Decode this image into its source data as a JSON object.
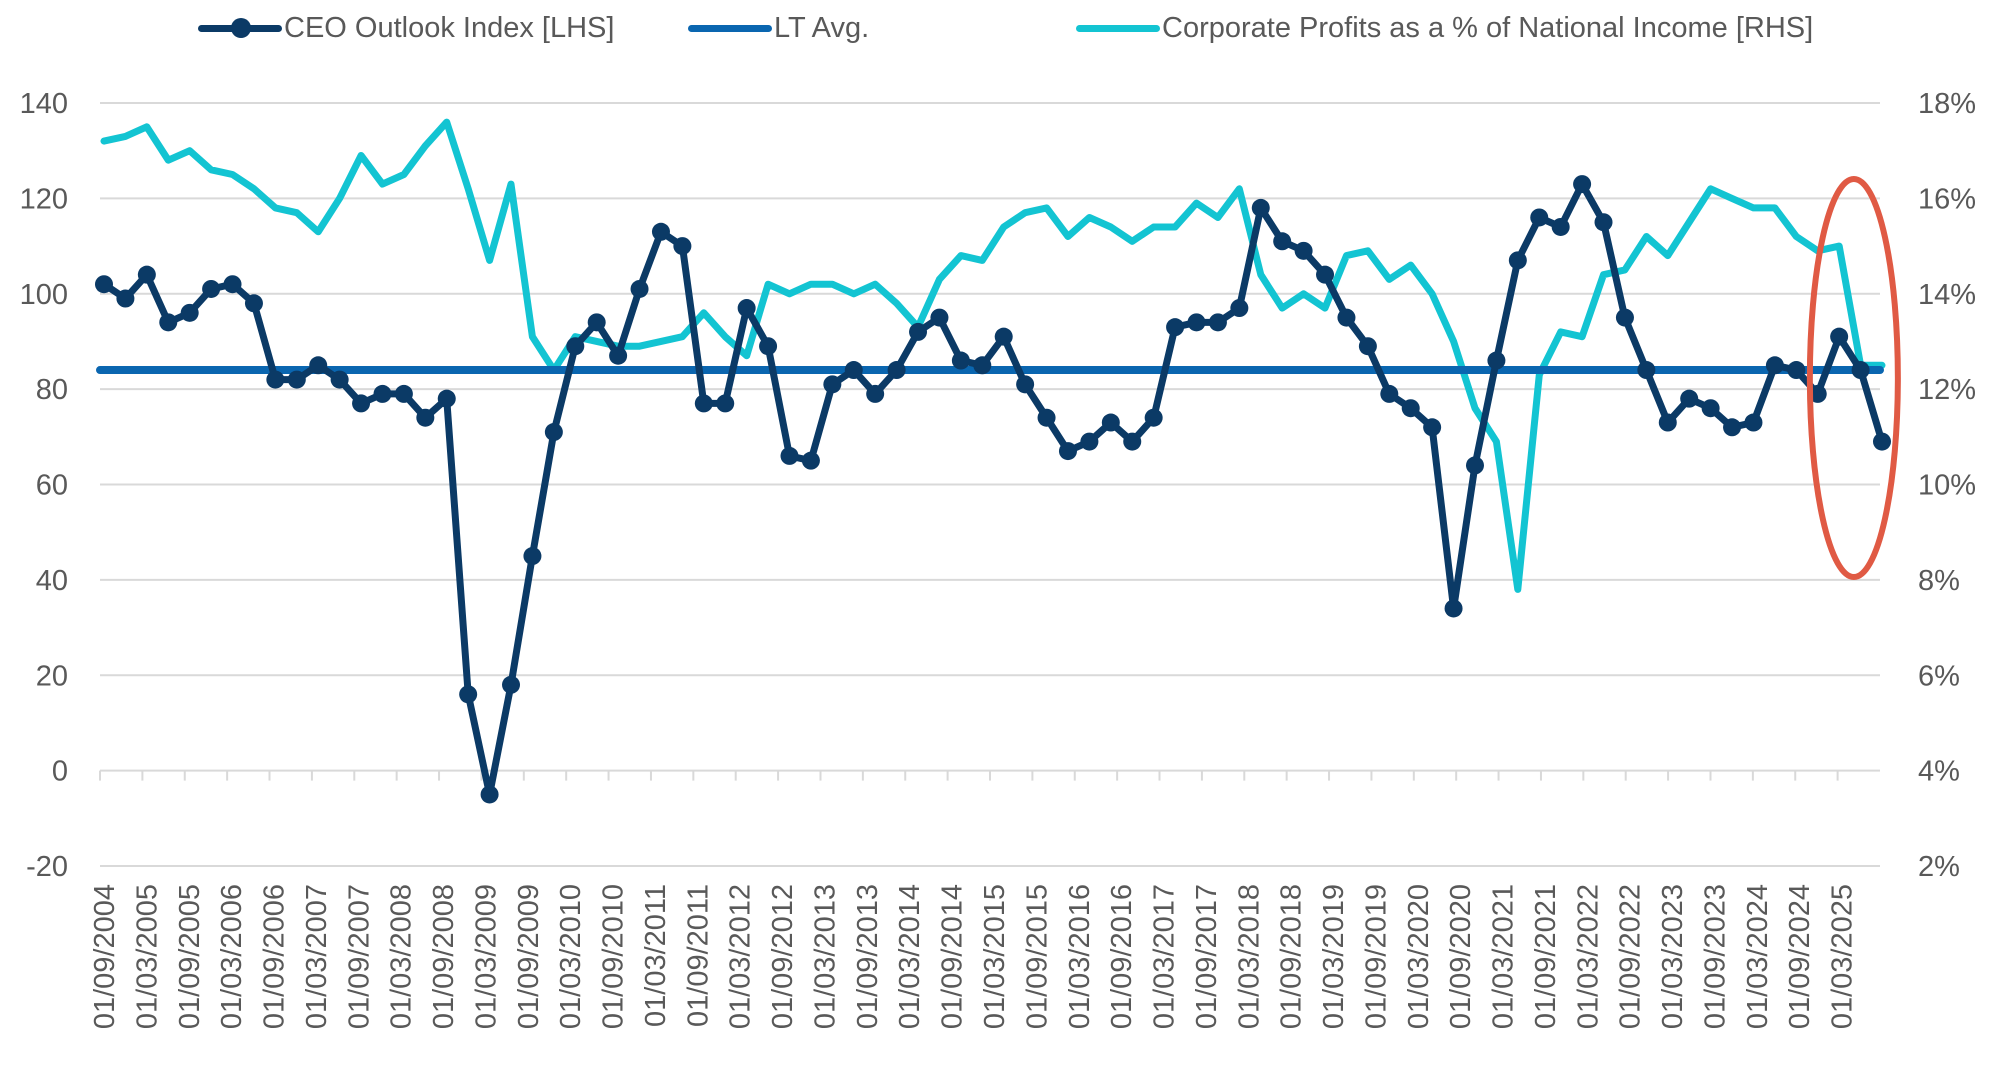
{
  "chart_data": {
    "type": "line",
    "title": "",
    "legend": {
      "placement": "top",
      "entries": [
        {
          "name": "CEO Outlook Index [LHS]",
          "color": "#0b3a66",
          "marker": "circle"
        },
        {
          "name": "LT Avg.",
          "color": "#0a66b0",
          "marker": "none"
        },
        {
          "name": "Corporate Profits as a % of National Income [RHS]",
          "color": "#13c4d2",
          "marker": "none"
        }
      ]
    },
    "x_tick_labels": [
      "01/09/2004",
      "01/03/2005",
      "01/09/2005",
      "01/03/2006",
      "01/09/2006",
      "01/03/2007",
      "01/09/2007",
      "01/03/2008",
      "01/09/2008",
      "01/03/2009",
      "01/09/2009",
      "01/03/2010",
      "01/09/2010",
      "01/03/2011",
      "01/09/2011",
      "01/03/2012",
      "01/09/2012",
      "01/03/2013",
      "01/09/2013",
      "01/03/2014",
      "01/09/2014",
      "01/03/2015",
      "01/09/2015",
      "01/03/2016",
      "01/09/2016",
      "01/03/2017",
      "01/09/2017",
      "01/03/2018",
      "01/09/2018",
      "01/03/2019",
      "01/09/2019",
      "01/03/2020",
      "01/09/2020",
      "01/03/2021",
      "01/09/2021",
      "01/03/2022",
      "01/09/2022",
      "01/03/2023",
      "01/09/2023",
      "01/03/2024",
      "01/09/2024",
      "01/03/2025"
    ],
    "left_axis": {
      "label": "",
      "ylim": [
        -20,
        140
      ],
      "ticks": [
        "-20",
        "0",
        "20",
        "40",
        "60",
        "80",
        "100",
        "120",
        "140"
      ]
    },
    "right_axis": {
      "label": "",
      "ylim": [
        2,
        18
      ],
      "ticks": [
        "2%",
        "4%",
        "6%",
        "8%",
        "10%",
        "12%",
        "14%",
        "16%",
        "18%"
      ]
    },
    "grid": true,
    "series": [
      {
        "name": "CEO Outlook Index [LHS]",
        "axis": "left",
        "values": [
          102,
          99,
          104,
          94,
          96,
          101,
          102,
          98,
          82,
          82,
          85,
          82,
          77,
          79,
          79,
          74,
          78,
          16,
          -5,
          18,
          45,
          71,
          89,
          94,
          87,
          101,
          113,
          110,
          77,
          77,
          97,
          89,
          66,
          65,
          81,
          84,
          79,
          84,
          92,
          95,
          86,
          85,
          91,
          81,
          74,
          67,
          69,
          73,
          69,
          74,
          93,
          94,
          94,
          97,
          118,
          111,
          109,
          104,
          95,
          89,
          79,
          76,
          72,
          34,
          64,
          86,
          107,
          116,
          114,
          123,
          115,
          95,
          84,
          73,
          78,
          76,
          72,
          73,
          85,
          84,
          79,
          91,
          84,
          69
        ]
      },
      {
        "name": "LT Avg.",
        "axis": "left",
        "value": 84
      },
      {
        "name": "Corporate Profits as a % of National Income [RHS]",
        "axis": "right",
        "values": [
          17.2,
          17.3,
          17.5,
          16.8,
          17.0,
          16.6,
          16.5,
          16.2,
          15.8,
          15.7,
          15.3,
          16.0,
          16.9,
          16.3,
          16.5,
          17.1,
          17.6,
          16.2,
          14.7,
          16.3,
          13.1,
          12.4,
          13.1,
          13.0,
          12.9,
          12.9,
          13.0,
          13.1,
          13.6,
          13.1,
          12.7,
          14.2,
          14.0,
          14.2,
          14.2,
          14.0,
          14.2,
          13.8,
          13.3,
          14.3,
          14.8,
          14.7,
          15.4,
          15.7,
          15.8,
          15.2,
          15.6,
          15.4,
          15.1,
          15.4,
          15.4,
          15.9,
          15.6,
          16.2,
          14.4,
          13.7,
          14.0,
          13.7,
          14.8,
          14.9,
          14.3,
          14.6,
          14.0,
          13.0,
          11.6,
          10.9,
          7.8,
          12.3,
          13.2,
          13.1,
          14.4,
          14.5,
          15.2,
          14.8,
          15.5,
          16.2,
          16.0,
          15.8,
          15.8,
          15.2,
          14.9,
          15.0,
          12.5,
          12.5
        ]
      }
    ],
    "annotations": [
      {
        "type": "ellipse",
        "color": "#e05a44",
        "highlights": "2024–2025 period"
      }
    ]
  },
  "colors": {
    "ceo": "#0b3a66",
    "avg": "#0a66b0",
    "profits": "#13c4d2",
    "highlight": "#e05a44",
    "grid": "#d9d9d9",
    "text": "#595959"
  }
}
